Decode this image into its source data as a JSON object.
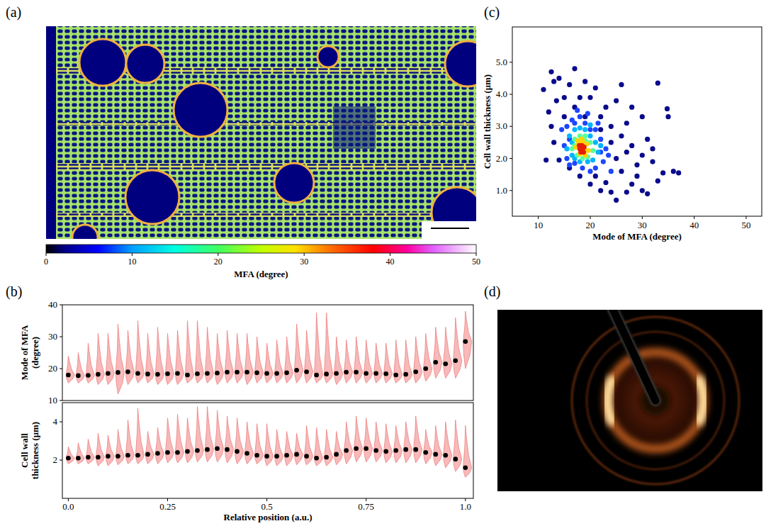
{
  "chart_data": [
    {
      "type": "image",
      "panel": "(a)",
      "colorbar": {
        "label": "MFA (degree)",
        "range": [
          0,
          50
        ],
        "ticks": [
          0,
          10,
          20,
          30,
          40,
          50
        ]
      }
    },
    {
      "type": "violin",
      "panel": "(b)",
      "y_label": "Mode of MFA (degree)",
      "color": "#f08080",
      "tick_labels": "y",
      "x": [
        0,
        0.025,
        0.05,
        0.075,
        0.1,
        0.125,
        0.15,
        0.175,
        0.2,
        0.225,
        0.25,
        0.275,
        0.3,
        0.325,
        0.35,
        0.375,
        0.4,
        0.425,
        0.45,
        0.475,
        0.5,
        0.525,
        0.55,
        0.575,
        0.6,
        0.625,
        0.65,
        0.675,
        0.7,
        0.725,
        0.75,
        0.775,
        0.8,
        0.825,
        0.85,
        0.875,
        0.9,
        0.925,
        0.95,
        0.975,
        1
      ],
      "values": [
        18,
        17.8,
        17.9,
        18.2,
        18.5,
        18.8,
        19,
        18.5,
        18.3,
        18.2,
        18.4,
        18.5,
        18,
        18.4,
        18.5,
        18.6,
        18.9,
        18.9,
        18.9,
        18.7,
        18.5,
        18.5,
        18.7,
        19.5,
        19,
        18,
        18.3,
        18.5,
        18.9,
        18.9,
        18.5,
        18.5,
        18.4,
        18,
        18.2,
        19,
        20,
        22,
        21.5,
        22.5,
        28.5
      ],
      "violin_min": [
        15.5,
        15.5,
        15.5,
        15,
        15,
        12,
        15,
        15.5,
        15.5,
        15,
        15,
        15,
        15.5,
        15.5,
        15.5,
        15,
        15.5,
        15.5,
        15,
        15.5,
        15.5,
        15.5,
        15.5,
        15.5,
        15.5,
        15.5,
        15.5,
        15,
        15.5,
        15.5,
        15.5,
        15.5,
        15.5,
        15.5,
        15.5,
        15.5,
        16,
        17,
        17,
        17,
        20
      ],
      "violin_max": [
        24,
        25,
        28,
        31,
        31,
        34,
        32,
        35,
        31,
        33,
        31,
        32,
        35,
        35,
        33,
        31,
        32,
        31,
        31,
        30,
        28,
        29,
        30,
        34,
        32,
        37.5,
        37.5,
        30,
        29,
        30,
        29,
        28,
        28,
        29,
        29,
        30,
        31,
        33,
        33,
        36,
        38
      ],
      "xlim": [
        -0.015,
        1.02
      ],
      "ylim": [
        10,
        40
      ],
      "yticks": [
        10,
        20,
        30,
        40
      ]
    },
    {
      "type": "violin",
      "y_label": "Cell wall thickness (μm)",
      "x_label": "Relative position (a.u.)",
      "color": "#f08080",
      "x": [
        0,
        0.025,
        0.05,
        0.075,
        0.1,
        0.125,
        0.15,
        0.175,
        0.2,
        0.225,
        0.25,
        0.275,
        0.3,
        0.325,
        0.35,
        0.375,
        0.4,
        0.425,
        0.45,
        0.475,
        0.5,
        0.525,
        0.55,
        0.575,
        0.6,
        0.625,
        0.65,
        0.675,
        0.7,
        0.725,
        0.75,
        0.775,
        0.8,
        0.825,
        0.85,
        0.875,
        0.9,
        0.925,
        0.95,
        0.975,
        1
      ],
      "values": [
        2.1,
        2.1,
        2.15,
        2.15,
        2.2,
        2.2,
        2.25,
        2.25,
        2.3,
        2.35,
        2.4,
        2.4,
        2.45,
        2.5,
        2.55,
        2.6,
        2.55,
        2.45,
        2.35,
        2.25,
        2.2,
        2.2,
        2.25,
        2.3,
        2.2,
        2.1,
        2.15,
        2.3,
        2.5,
        2.6,
        2.6,
        2.5,
        2.45,
        2.5,
        2.55,
        2.55,
        2.4,
        2.3,
        2.25,
        2.05,
        1.6
      ],
      "violin_min": [
        1.8,
        1.8,
        1.8,
        1.7,
        1.7,
        1.75,
        1.8,
        1.8,
        1.8,
        1.8,
        1.85,
        1.85,
        1.85,
        1.9,
        1.9,
        1.9,
        1.85,
        1.8,
        1.8,
        1.8,
        1.7,
        1.7,
        1.7,
        1.75,
        1.75,
        1.7,
        1.7,
        1.75,
        1.8,
        1.9,
        1.9,
        1.9,
        1.85,
        1.85,
        1.85,
        1.85,
        1.8,
        1.7,
        1.6,
        1.4,
        1.1
      ],
      "violin_max": [
        2.7,
        2.9,
        3.1,
        3.4,
        3.3,
        3.6,
        4.1,
        4.7,
        3.5,
        3.7,
        4.2,
        4.4,
        4.2,
        4.8,
        4.8,
        4.6,
        4.3,
        4.2,
        4.0,
        3.9,
        3.9,
        3.6,
        3.5,
        3.4,
        3.8,
        3.7,
        3.6,
        3.5,
        4.0,
        4.3,
        4.2,
        4.0,
        3.9,
        3.8,
        4.0,
        4.3,
        3.6,
        3.8,
        4.0,
        4.1,
        3.8
      ],
      "xlim": [
        -0.015,
        1.02
      ],
      "xticks": [
        {
          "value": 0,
          "label": "0.0"
        },
        0.25,
        0.5,
        0.75,
        {
          "value": 1,
          "label": "1.0"
        }
      ],
      "ylim": [
        0,
        5
      ],
      "yticks": [
        2,
        4
      ]
    },
    {
      "type": "scatter",
      "panel": "(c)",
      "x_label": "Mode of MFA (degree)",
      "y_label": "Cell wall thickness (μm)",
      "marker": "circle",
      "series": [
        {
          "color": "#0a0a8c",
          "x": [
            11,
            12.5,
            13,
            14,
            17,
            16,
            19,
            21,
            26,
            33,
            34.8,
            35,
            30,
            28,
            25,
            23,
            12,
            12.5,
            11.5,
            13,
            14,
            13.5,
            15,
            20,
            22,
            27,
            31,
            32,
            34,
            36,
            37,
            33,
            30,
            31,
            28,
            27,
            25,
            24,
            22,
            23,
            20,
            18,
            26,
            29,
            28,
            26,
            24,
            30,
            25,
            21,
            16,
            15,
            17,
            19,
            27,
            29,
            32,
            24,
            22,
            18
          ],
          "values": [
            4.15,
            4.7,
            4.4,
            4.5,
            4.8,
            4.3,
            4.4,
            4.2,
            4.3,
            4.35,
            3.55,
            3.3,
            3.3,
            3.6,
            3.8,
            3.6,
            3.45,
            3.0,
            1.95,
            2.5,
            1.95,
            3.8,
            3.9,
            3.9,
            3.3,
            3.1,
            2.6,
            1.9,
            1.55,
            1.6,
            1.55,
            1.3,
            1.0,
            0.9,
            1.2,
            0.95,
            0.7,
            0.95,
            1.0,
            1.25,
            1.2,
            1.45,
            1.6,
            1.8,
            2.4,
            2.7,
            3.0,
            2.1,
            2.0,
            1.45,
            1.7,
            3.3,
            3.6,
            3.3,
            2.2,
            1.45,
            2.3,
            2.5,
            2.9,
            3.9
          ]
        },
        {
          "color": "#1e46ff",
          "x": [
            14.5,
            15,
            15.5,
            16,
            16.5,
            17,
            18,
            19,
            20,
            21,
            22,
            23,
            22.5,
            21,
            20,
            18.5,
            17,
            19.5,
            16,
            23.5,
            24,
            22,
            21.5,
            17.5,
            15.5
          ],
          "values": [
            2.9,
            2.4,
            2.0,
            1.8,
            3.2,
            3.1,
            3.3,
            3.1,
            2.9,
            2.9,
            2.6,
            2.3,
            1.9,
            1.7,
            1.6,
            1.7,
            1.85,
            3.4,
            2.6,
            2.1,
            1.6,
            2.2,
            3.1,
            3.5,
            3.0
          ]
        },
        {
          "color": "#00b4ff",
          "x": [
            15.5,
            16,
            16.5,
            17,
            18,
            19,
            20,
            21,
            21.5,
            20.5,
            19.5,
            18,
            17,
            16.5,
            20,
            22
          ],
          "values": [
            2.3,
            2.7,
            2.1,
            2.9,
            2.95,
            2.9,
            2.7,
            2.5,
            2.2,
            1.95,
            1.9,
            1.9,
            2.0,
            2.5,
            3.05,
            2.4
          ]
        },
        {
          "color": "#5aff9b",
          "x": [
            16.5,
            17,
            17.5,
            18,
            19,
            20,
            20.5,
            19.5,
            18.5,
            17,
            19
          ],
          "values": [
            2.3,
            2.6,
            2.1,
            2.7,
            2.7,
            2.5,
            2.25,
            2.05,
            2.0,
            2.4,
            2.55
          ]
        },
        {
          "color": "#ffd200",
          "x": [
            17.3,
            17.6,
            18,
            18.5,
            19.3,
            19.6,
            19,
            17.8,
            18.3
          ],
          "values": [
            2.35,
            2.55,
            2.15,
            2.55,
            2.45,
            2.25,
            2.1,
            2.45,
            2.6
          ]
        },
        {
          "color": "#e61e00",
          "x": [
            18,
            18.4,
            18.7,
            18.2,
            18.8,
            17.9,
            18.5
          ],
          "values": [
            2.3,
            2.4,
            2.2,
            2.2,
            2.35,
            2.4,
            2.3
          ]
        }
      ],
      "xlim": [
        5,
        53
      ],
      "xticks": [
        10,
        20,
        30,
        40,
        50
      ],
      "ylim": [
        0.2,
        6.1
      ],
      "yticks": [
        {
          "value": 1,
          "label": "1.0"
        },
        {
          "value": 2,
          "label": "2.0"
        },
        {
          "value": 3,
          "label": "3.0"
        },
        {
          "value": 4,
          "label": "4.0"
        },
        {
          "value": 5,
          "label": "5.0"
        }
      ]
    },
    {
      "type": "image",
      "panel": "(d)"
    }
  ]
}
